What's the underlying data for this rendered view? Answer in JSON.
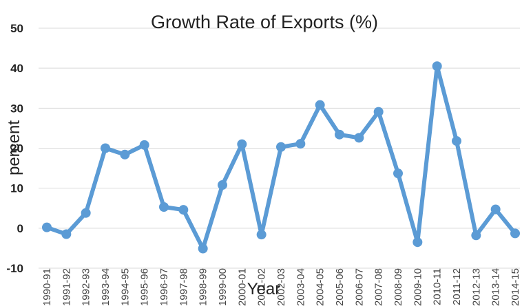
{
  "chart_data": {
    "type": "line",
    "title": "Growth Rate of Exports (%)",
    "xlabel": "Year",
    "ylabel": "percent",
    "ylim": [
      -10,
      50
    ],
    "yticks": [
      -10,
      0,
      10,
      20,
      30,
      40,
      50
    ],
    "grid": true,
    "legend": "none",
    "categories": [
      "1990-91",
      "1991-92",
      "1992-93",
      "1993-94",
      "1994-95",
      "1995-96",
      "1996-97",
      "1997-98",
      "1998-99",
      "1999-00",
      "2000-01",
      "2001-02",
      "2002-03",
      "2003-04",
      "2004-05",
      "2005-06",
      "2006-07",
      "2007-08",
      "2008-09",
      "2009-10",
      "2010-11",
      "2011-12",
      "2012-13",
      "2013-14",
      "2014-15"
    ],
    "series": [
      {
        "color": "#5b9bd5",
        "values": [
          0.2,
          -1.5,
          3.8,
          20.0,
          18.4,
          20.8,
          5.3,
          4.6,
          -5.1,
          10.8,
          21.0,
          -1.6,
          20.3,
          21.1,
          30.8,
          23.4,
          22.6,
          29.1,
          13.7,
          -3.5,
          40.5,
          21.8,
          -1.8,
          4.7,
          -1.3
        ]
      }
    ]
  }
}
